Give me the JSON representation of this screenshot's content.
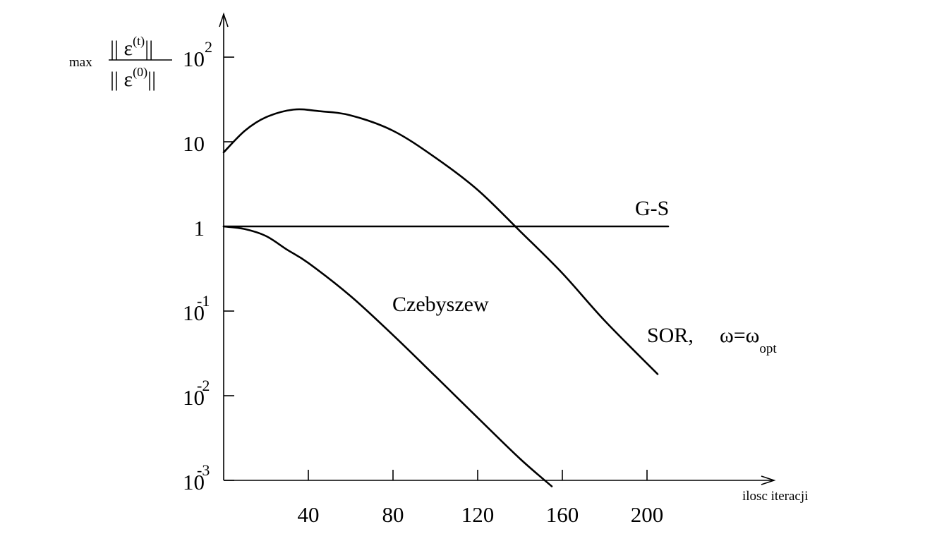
{
  "chart_data": {
    "type": "line",
    "y_scale": "log",
    "xlim": [
      0,
      256
    ],
    "ylim": [
      0.001,
      100
    ],
    "x_ticks": [
      40,
      80,
      120,
      160,
      200
    ],
    "x_tick_labels": [
      "40",
      "80",
      "120",
      "160",
      "200"
    ],
    "y_ticks": [
      0.001,
      0.01,
      0.1,
      1,
      10,
      100
    ],
    "y_tick_labels": [
      {
        "base": "10",
        "exp": "-3"
      },
      {
        "base": "10",
        "exp": "-2"
      },
      {
        "base": "10",
        "exp": "-1"
      },
      {
        "base": "1",
        "exp": ""
      },
      {
        "base": "10",
        "exp": ""
      },
      {
        "base": "10",
        "exp": "2"
      }
    ],
    "xlabel": "ilosc iteracji",
    "ylabel": {
      "prefix": "max",
      "numerator": "|| ε",
      "numerator_sup": "(t)",
      "numerator_end": "||",
      "denominator": "|| ε",
      "denominator_sup": "(0)",
      "denominator_end": "||"
    },
    "grid": false,
    "series": [
      {
        "name": "G-S",
        "x": [
          0,
          210
        ],
        "y": [
          1,
          1
        ]
      },
      {
        "name": "SOR",
        "name_suffix": "ω=ω",
        "name_sub": "opt",
        "x": [
          0,
          10,
          20,
          33,
          45,
          60,
          80,
          100,
          120,
          140,
          160,
          180,
          205
        ],
        "y": [
          7.5,
          13.5,
          19.5,
          24,
          23,
          20.5,
          13.5,
          6.5,
          2.7,
          0.88,
          0.28,
          0.077,
          0.018
        ]
      },
      {
        "name": "Czebyszew",
        "x": [
          0,
          10,
          20,
          30,
          40,
          60,
          80,
          100,
          120,
          140,
          155
        ],
        "y": [
          1,
          0.93,
          0.77,
          0.53,
          0.37,
          0.15,
          0.052,
          0.017,
          0.0055,
          0.0018,
          0.00085
        ]
      }
    ]
  }
}
